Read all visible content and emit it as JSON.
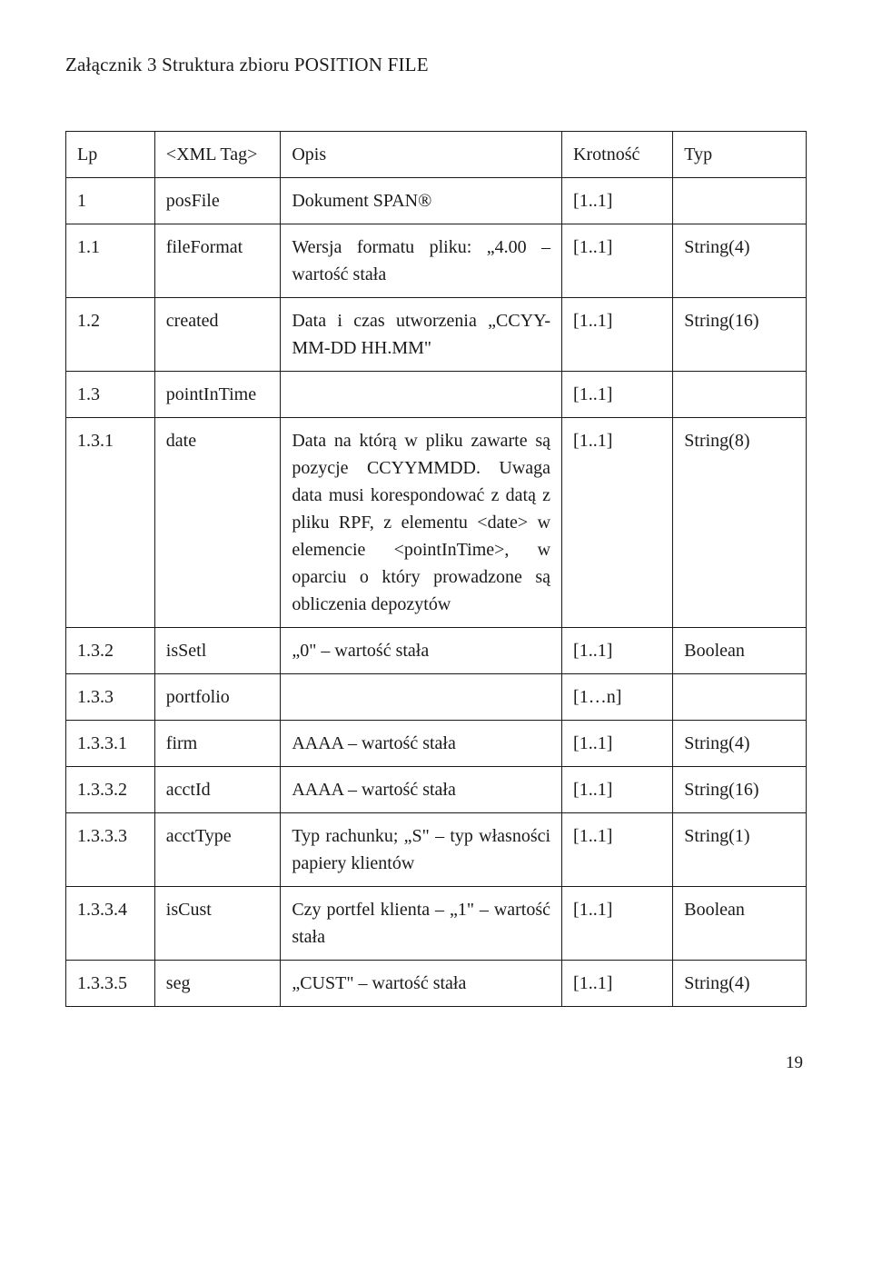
{
  "title": "Załącznik 3 Struktura zbioru POSITION FILE",
  "table": {
    "headers": {
      "lp": "Lp",
      "tag": "<XML Tag>",
      "opis": "Opis",
      "krot": "Krotność",
      "typ": "Typ"
    },
    "rows": [
      {
        "lp": "1",
        "tag": "posFile",
        "opis": "Dokument SPAN®",
        "krot": "[1..1]",
        "typ": ""
      },
      {
        "lp": "1.1",
        "tag": "fileFormat",
        "opis": "Wersja formatu pliku: „4.00 – wartość stała",
        "krot": "[1..1]",
        "typ": "String(4)",
        "justify": true
      },
      {
        "lp": "1.2",
        "tag": "created",
        "opis": "Data i czas utworzenia „CCYY-MM-DD HH.MM\"",
        "krot": "[1..1]",
        "typ": "String(16)",
        "justify": true
      },
      {
        "lp": "1.3",
        "tag": "pointInTime",
        "opis": "",
        "krot": "[1..1]",
        "typ": ""
      },
      {
        "lp": "1.3.1",
        "tag": "date",
        "opis": "Data na którą w pliku zawarte są pozycje CCYYMMDD. Uwaga data musi korespondować z datą z pliku RPF, z elementu <date> w elemencie <pointInTime>, w oparciu o który prowadzone są obliczenia depozytów",
        "krot": "[1..1]",
        "typ": "String(8)",
        "justify": true
      },
      {
        "lp": "1.3.2",
        "tag": "isSetl",
        "opis": "„0\" – wartość stała",
        "krot": "[1..1]",
        "typ": "Boolean"
      },
      {
        "lp": "1.3.3",
        "tag": "portfolio",
        "opis": "",
        "krot": "[1…n]",
        "typ": ""
      },
      {
        "lp": "1.3.3.1",
        "tag": "firm",
        "opis": "AAAA – wartość stała",
        "krot": "[1..1]",
        "typ": "String(4)"
      },
      {
        "lp": "1.3.3.2",
        "tag": "acctId",
        "opis": "AAAA – wartość stała",
        "krot": "[1..1]",
        "typ": "String(16)"
      },
      {
        "lp": "1.3.3.3",
        "tag": "acctType",
        "opis": "Typ rachunku; „S\" – typ własności papiery klientów",
        "krot": "[1..1]",
        "typ": "String(1)",
        "justify": true
      },
      {
        "lp": "1.3.3.4",
        "tag": "isCust",
        "opis": "Czy portfel klienta – „1\" – wartość stała",
        "krot": "[1..1]",
        "typ": "Boolean",
        "justify": true
      },
      {
        "lp": "1.3.3.5",
        "tag": "seg",
        "opis": "„CUST\" – wartość stała",
        "krot": "[1..1]",
        "typ": "String(4)"
      }
    ]
  },
  "page_number": "19"
}
